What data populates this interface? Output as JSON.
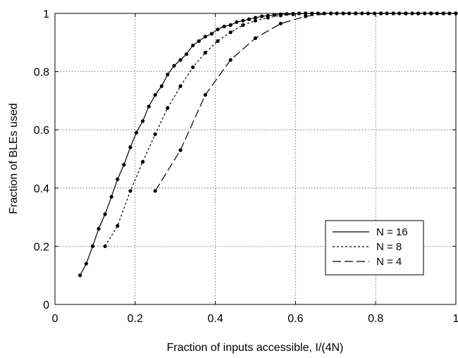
{
  "chart_data": {
    "type": "line",
    "title": "",
    "xlabel": "Fraction of inputs accessible, I/(4N)",
    "ylabel": "Fraction of BLEs used",
    "xlim": [
      0,
      1
    ],
    "ylim": [
      0,
      1
    ],
    "x_ticks": [
      "0",
      "0.2",
      "0.4",
      "0.6",
      "0.8",
      "1"
    ],
    "y_ticks": [
      "0",
      "0.2",
      "0.4",
      "0.6",
      "0.8",
      "1"
    ],
    "grid": true,
    "legend_position": "lower-right",
    "series": [
      {
        "name": "N = 16",
        "dash": "solid",
        "x": [
          0.0625,
          0.078,
          0.094,
          0.109,
          0.125,
          0.141,
          0.156,
          0.172,
          0.188,
          0.203,
          0.219,
          0.234,
          0.25,
          0.266,
          0.281,
          0.297,
          0.313,
          0.328,
          0.344,
          0.359,
          0.375,
          0.391,
          0.406,
          0.422,
          0.438,
          0.453,
          0.469,
          0.484,
          0.5,
          0.516,
          0.531,
          0.547,
          0.563,
          0.578,
          0.594,
          0.609,
          0.625,
          0.641,
          0.656,
          0.672,
          0.688,
          0.703,
          0.719,
          0.734,
          0.75,
          0.766,
          0.781,
          0.797,
          0.813,
          0.828,
          0.844,
          0.859,
          0.875,
          0.891,
          0.906,
          0.922,
          0.938,
          0.953,
          0.969,
          0.984,
          1.0
        ],
        "y": [
          0.1,
          0.14,
          0.2,
          0.26,
          0.31,
          0.37,
          0.43,
          0.48,
          0.54,
          0.59,
          0.63,
          0.68,
          0.72,
          0.75,
          0.79,
          0.82,
          0.84,
          0.86,
          0.89,
          0.905,
          0.92,
          0.93,
          0.945,
          0.955,
          0.96,
          0.97,
          0.975,
          0.98,
          0.985,
          0.99,
          0.992,
          0.995,
          0.997,
          0.998,
          0.999,
          1.0,
          1.0,
          1.0,
          1.0,
          1.0,
          1.0,
          1.0,
          1.0,
          1.0,
          1.0,
          1.0,
          1.0,
          1.0,
          1.0,
          1.0,
          1.0,
          1.0,
          1.0,
          1.0,
          1.0,
          1.0,
          1.0,
          1.0,
          1.0,
          1.0,
          1.0
        ]
      },
      {
        "name": "N = 8",
        "dash": "dotted",
        "x": [
          0.125,
          0.156,
          0.188,
          0.219,
          0.25,
          0.281,
          0.313,
          0.344,
          0.375,
          0.406,
          0.438,
          0.469,
          0.5,
          0.531,
          0.563,
          0.594,
          0.625,
          0.656,
          0.688,
          0.719,
          0.75,
          0.781,
          0.813,
          0.844,
          0.875,
          0.906,
          0.938,
          0.969,
          1.0
        ],
        "y": [
          0.2,
          0.27,
          0.39,
          0.49,
          0.585,
          0.675,
          0.75,
          0.815,
          0.865,
          0.905,
          0.935,
          0.96,
          0.975,
          0.985,
          0.993,
          0.997,
          1.0,
          1.0,
          1.0,
          1.0,
          1.0,
          1.0,
          1.0,
          1.0,
          1.0,
          1.0,
          1.0,
          1.0,
          1.0
        ]
      },
      {
        "name": "N = 4",
        "dash": "dashed",
        "x": [
          0.25,
          0.313,
          0.375,
          0.438,
          0.5,
          0.563,
          0.625,
          0.688,
          0.75,
          0.813,
          0.875,
          0.938,
          1.0
        ],
        "y": [
          0.39,
          0.53,
          0.72,
          0.84,
          0.915,
          0.965,
          0.99,
          1.0,
          1.0,
          1.0,
          1.0,
          1.0,
          1.0
        ]
      }
    ]
  }
}
